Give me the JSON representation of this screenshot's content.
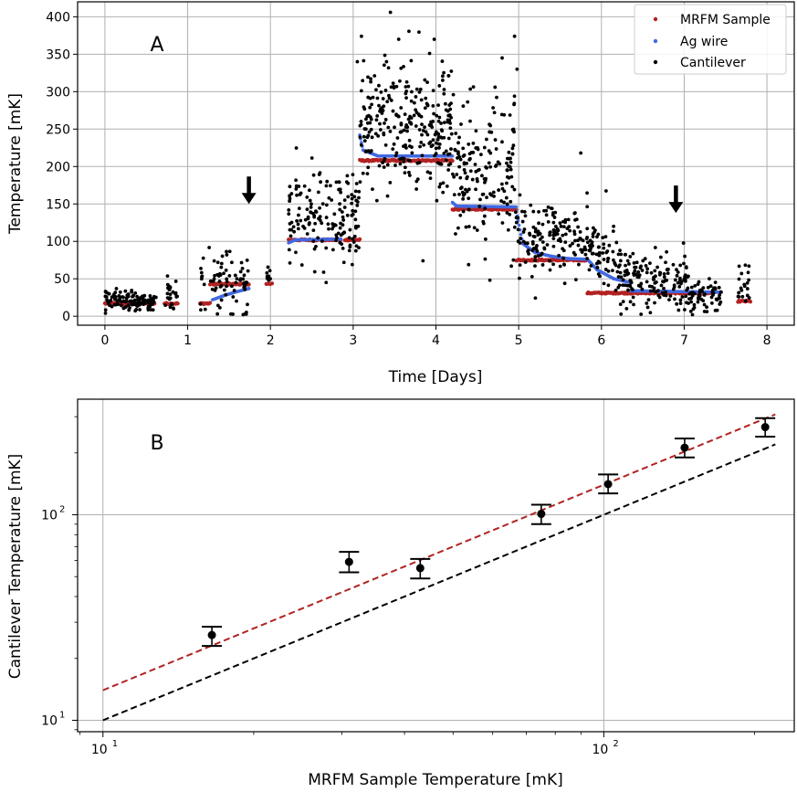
{
  "chart_data": [
    {
      "type": "scatter",
      "panel_label": "A",
      "xlabel": "Time [Days]",
      "ylabel": "Temperature [mK]",
      "xlim": [
        -0.33,
        8.33
      ],
      "ylim": [
        -12,
        420
      ],
      "xticks": [
        0,
        1,
        2,
        3,
        4,
        5,
        6,
        7,
        8
      ],
      "yticks": [
        0,
        50,
        100,
        150,
        200,
        250,
        300,
        350,
        400
      ],
      "grid": true,
      "legend_position": "top-right",
      "colors": {
        "MRFM Sample": "#b22222",
        "Ag wire": "#4169e1",
        "Cantilever": "#000000"
      },
      "arrows": [
        {
          "x": 1.74,
          "y": 150
        },
        {
          "x": 6.9,
          "y": 138
        }
      ],
      "series": [
        {
          "name": "MRFM Sample",
          "segments": [
            {
              "x": [
                0.0,
                0.6
              ],
              "y": [
                17,
                17
              ]
            },
            {
              "x": [
                0.72,
                0.88
              ],
              "y": [
                17,
                17
              ]
            },
            {
              "x": [
                1.15,
                1.27
              ],
              "y": [
                17,
                17
              ]
            },
            {
              "x": [
                1.27,
                1.74
              ],
              "y": [
                43,
                43
              ]
            },
            {
              "x": [
                1.95,
                2.02
              ],
              "y": [
                43,
                43
              ]
            },
            {
              "x": [
                2.22,
                2.85
              ],
              "y": [
                102,
                102
              ]
            },
            {
              "x": [
                2.9,
                3.08
              ],
              "y": [
                102,
                102
              ]
            },
            {
              "x": [
                3.08,
                4.2
              ],
              "y": [
                208,
                208
              ]
            },
            {
              "x": [
                4.2,
                4.97
              ],
              "y": [
                143,
                143
              ]
            },
            {
              "x": [
                4.97,
                5.83
              ],
              "y": [
                75,
                75
              ]
            },
            {
              "x": [
                5.83,
                7.35
              ],
              "y": [
                31,
                31
              ]
            },
            {
              "x": [
                7.65,
                7.8
              ],
              "y": [
                20,
                20
              ]
            }
          ]
        },
        {
          "name": "Ag wire",
          "segments": [
            {
              "x": [
                1.3,
                1.45,
                1.6,
                1.74
              ],
              "y": [
                22,
                28,
                33,
                37
              ]
            },
            {
              "x": [
                2.22,
                2.3,
                2.85
              ],
              "y": [
                98,
                102,
                103
              ]
            },
            {
              "x": [
                3.08,
                3.12,
                3.3,
                4.2
              ],
              "y": [
                242,
                222,
                214,
                214
              ]
            },
            {
              "x": [
                4.2,
                4.25,
                4.97
              ],
              "y": [
                152,
                147,
                146
              ]
            },
            {
              "x": [
                4.97,
                5.05,
                5.2,
                5.4,
                5.6,
                5.83
              ],
              "y": [
                140,
                97,
                85,
                80,
                77,
                76
              ]
            },
            {
              "x": [
                5.83,
                5.95,
                6.15,
                6.35
              ],
              "y": [
                76,
                62,
                50,
                45
              ]
            },
            {
              "x": [
                6.35,
                7.45
              ],
              "y": [
                34,
                32
              ]
            }
          ]
        },
        {
          "name": "Cantilever",
          "clusters": [
            {
              "x": [
                0.0,
                0.62
              ],
              "center": 21,
              "spread": 6,
              "n": 130
            },
            {
              "x": [
                0.72,
                0.88
              ],
              "center": 28,
              "spread": 8,
              "n": 25
            },
            {
              "x": [
                1.15,
                1.74
              ],
              "center": 45,
              "spread": 20,
              "n": 80
            },
            {
              "x": [
                1.95,
                2.02
              ],
              "center": 60,
              "spread": 8,
              "n": 8
            },
            {
              "x": [
                2.22,
                3.08
              ],
              "center": 135,
              "spread": 30,
              "n": 160
            },
            {
              "x": [
                3.08,
                4.2
              ],
              "center": 255,
              "spread": 45,
              "n": 280
            },
            {
              "x": [
                4.2,
                4.97
              ],
              "center": 200,
              "spread": 45,
              "n": 170
            },
            {
              "x": [
                4.97,
                5.83
              ],
              "center": 105,
              "spread": 25,
              "n": 150
            },
            {
              "x": [
                5.83,
                6.2
              ],
              "center": 90,
              "spread": 22,
              "n": 60
            },
            {
              "x": [
                6.2,
                7.05
              ],
              "center": 50,
              "spread": 20,
              "n": 160
            },
            {
              "x": [
                7.05,
                7.45
              ],
              "center": 28,
              "spread": 10,
              "n": 60
            },
            {
              "x": [
                7.65,
                7.8
              ],
              "center": 45,
              "spread": 15,
              "n": 20
            }
          ],
          "outliers": [
            {
              "x": 3.45,
              "y": 406
            },
            {
              "x": 3.1,
              "y": 374
            },
            {
              "x": 4.95,
              "y": 374
            },
            {
              "x": 3.55,
              "y": 370
            },
            {
              "x": 4.8,
              "y": 345
            },
            {
              "x": 5.75,
              "y": 218
            },
            {
              "x": 3.05,
              "y": 340
            },
            {
              "x": 4.98,
              "y": 330
            },
            {
              "x": 7.1,
              "y": 2
            }
          ]
        }
      ]
    },
    {
      "type": "scatter",
      "panel_label": "B",
      "xlabel": "MRFM Sample Temperature [mK]",
      "ylabel": "Cantilever Temperature [mK]",
      "xscale": "log",
      "yscale": "log",
      "xlim": [
        8.9,
        240
      ],
      "ylim": [
        8.8,
        365
      ],
      "xticks": [
        {
          "value": 10,
          "base": "10",
          "exp": "1"
        },
        {
          "value": 100,
          "base": "10",
          "exp": "2"
        }
      ],
      "yticks": [
        {
          "value": 10,
          "base": "10",
          "exp": "1"
        },
        {
          "value": 100,
          "base": "10",
          "exp": "2"
        }
      ],
      "grid": true,
      "points": [
        {
          "x": 16.5,
          "y": 26,
          "yerr_low": 23,
          "yerr_high": 28.5
        },
        {
          "x": 31,
          "y": 59,
          "yerr_low": 52.5,
          "yerr_high": 66
        },
        {
          "x": 43,
          "y": 55,
          "yerr_low": 49,
          "yerr_high": 61
        },
        {
          "x": 75,
          "y": 101,
          "yerr_low": 90,
          "yerr_high": 112
        },
        {
          "x": 102,
          "y": 141,
          "yerr_low": 127,
          "yerr_high": 157
        },
        {
          "x": 145,
          "y": 212,
          "yerr_low": 190,
          "yerr_high": 235
        },
        {
          "x": 210,
          "y": 267,
          "yerr_low": 240,
          "yerr_high": 295
        }
      ],
      "lines": [
        {
          "color": "#b22222",
          "style": "dashed",
          "x": [
            10,
            220
          ],
          "y": [
            14,
            308
          ]
        },
        {
          "color": "#000000",
          "style": "dashed",
          "x": [
            10,
            220
          ],
          "y": [
            10,
            220
          ]
        }
      ]
    }
  ]
}
